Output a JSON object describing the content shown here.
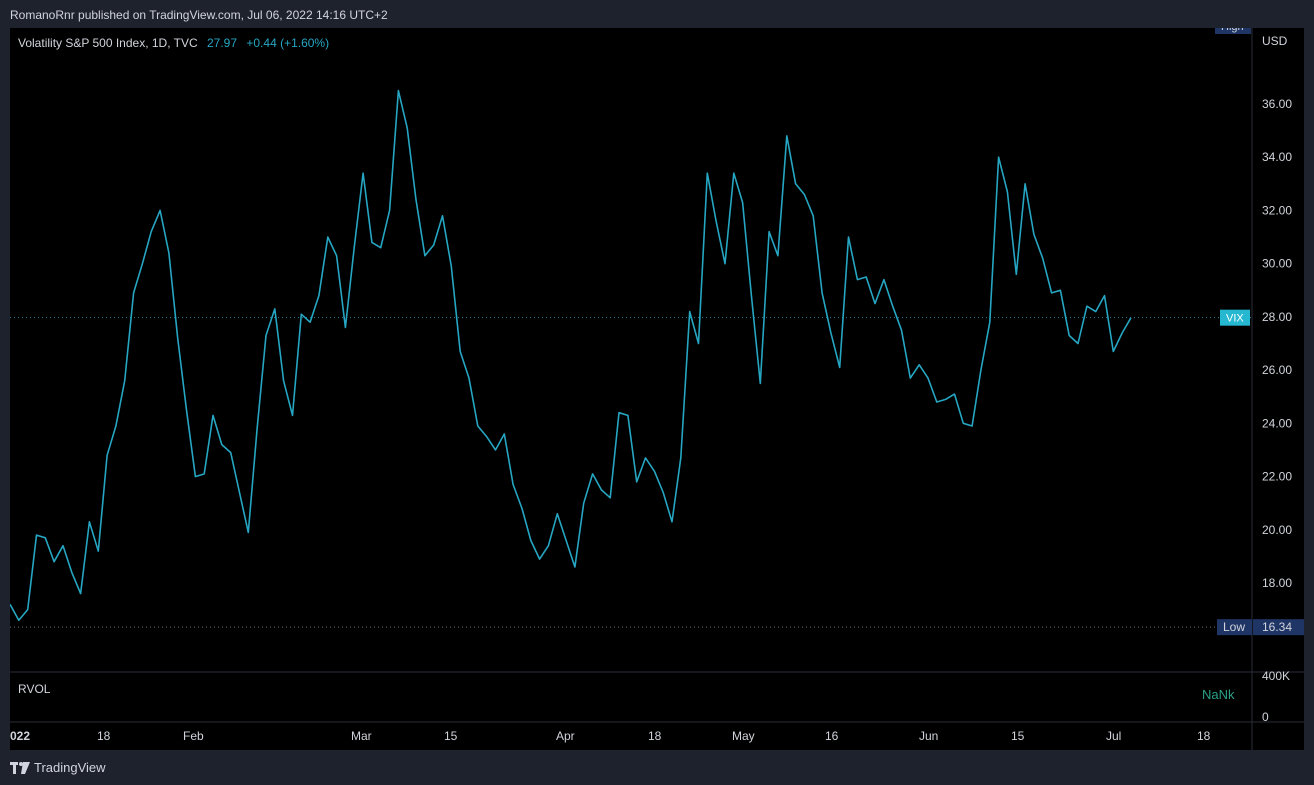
{
  "header": {
    "publisher_text": "RomanoRnr published on TradingView.com, Jul 06, 2022 14:16 UTC+2"
  },
  "legend": {
    "title": "Volatility S&P 500 Index, 1D, TVC",
    "last_value": "27.97",
    "change": "+0.44 (+1.60%)"
  },
  "axis": {
    "currency": "USD",
    "high_label": "High",
    "low_label": "Low",
    "low_value": "16.34",
    "vix_label": "VIX",
    "y_ticks": [
      "18.00",
      "20.00",
      "22.00",
      "24.00",
      "26.00",
      "28.00",
      "30.00",
      "32.00",
      "34.00",
      "36.00"
    ],
    "x_ticks": [
      "022",
      "18",
      "Feb",
      "Mar",
      "15",
      "Apr",
      "18",
      "May",
      "16",
      "Jun",
      "15",
      "Jul",
      "18"
    ]
  },
  "volume_pane": {
    "label": "RVOL",
    "value": "NaNk",
    "ticks": [
      "400K",
      "0"
    ]
  },
  "footer": {
    "brand": "TradingView"
  },
  "colors": {
    "line": "#26a6c2",
    "background": "#000000",
    "frame": "#1e222d",
    "grid_text": "#d1d4dc",
    "badge_high_low": "#1f3565",
    "badge_vix": "#26b7d1",
    "volume_value": "#2aa187"
  },
  "chart_data": {
    "type": "line",
    "series": [
      {
        "name": "VIX",
        "values": [
          17.2,
          16.6,
          17.0,
          19.8,
          19.7,
          18.8,
          19.4,
          18.4,
          17.6,
          20.3,
          19.2,
          22.8,
          23.9,
          25.6,
          28.9,
          30.0,
          31.2,
          32.0,
          30.4,
          27.2,
          24.5,
          22.0,
          22.1,
          24.3,
          23.2,
          22.9,
          21.4,
          19.9,
          23.8,
          27.3,
          28.3,
          25.6,
          24.3,
          28.1,
          27.8,
          28.8,
          31.0,
          30.3,
          27.6,
          30.6,
          33.4,
          30.8,
          30.6,
          32.0,
          36.5,
          35.1,
          32.4,
          30.3,
          30.7,
          31.8,
          29.9,
          26.7,
          25.7,
          23.9,
          23.5,
          23.0,
          23.6,
          21.7,
          20.8,
          19.6,
          18.9,
          19.4,
          20.6,
          19.6,
          18.6,
          21.0,
          22.1,
          21.5,
          21.2,
          24.4,
          24.3,
          21.8,
          22.7,
          22.2,
          21.4,
          20.3,
          22.7,
          28.2,
          27.0,
          33.4,
          31.6,
          30.0,
          33.4,
          32.3,
          28.8,
          25.5,
          31.2,
          30.3,
          34.8,
          33.0,
          32.6,
          31.8,
          28.9,
          27.4,
          26.1,
          31.0,
          29.4,
          29.5,
          28.5,
          29.4,
          28.4,
          27.5,
          25.7,
          26.2,
          25.7,
          24.8,
          24.9,
          25.1,
          24.0,
          23.9,
          26.0,
          27.8,
          34.0,
          32.7,
          29.6,
          33.0,
          31.1,
          30.2,
          28.9,
          29.0,
          27.3,
          27.0,
          28.4,
          28.2,
          28.8,
          26.7,
          27.4,
          27.97
        ]
      }
    ],
    "x_tick_labels": [
      "022",
      "18",
      "Feb",
      "Mar",
      "15",
      "Apr",
      "18",
      "May",
      "16",
      "Jun",
      "15",
      "Jul",
      "18"
    ],
    "ylabel": "USD",
    "ylim": [
      16.0,
      36.8
    ],
    "last_value": 27.97,
    "low": 16.34,
    "grid": false,
    "legend": "top-left"
  }
}
